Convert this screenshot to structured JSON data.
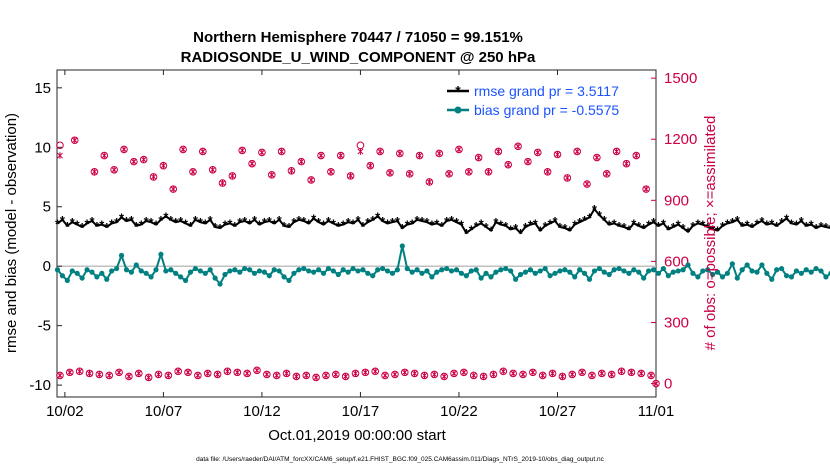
{
  "chart_data": {
    "type": "line",
    "title": "Northern Hemisphere 70447 / 71050 = 99.151%",
    "subtitle": "RADIOSONDE_U_WIND_COMPONENT @ 250 hPa",
    "xlabel": "Oct.01,2019 00:00:00 start",
    "ylabel_left": "rmse and bias (model - observation)",
    "ylabel_right": "# of obs: o=possible; ×=assimilated",
    "footnote": "data file: /Users/raeder/DAI/ATM_forcXX/CAM6_setup/f.e21.FHIST_BGC.f09_025.CAM6assim.011/Diags_NTrS_2019-10/obs_diag_output.nc",
    "x_ticks": [
      "10/02",
      "10/07",
      "10/12",
      "10/17",
      "10/22",
      "10/27",
      "11/01"
    ],
    "x_tick_days": [
      1,
      6,
      11,
      16,
      21,
      26,
      31
    ],
    "xlim_days": [
      0.6,
      31
    ],
    "y_left_ticks": [
      "-10",
      "-5",
      "0",
      "5",
      "10",
      "15"
    ],
    "y_left_tick_values": [
      -10,
      -5,
      0,
      5,
      10,
      15
    ],
    "ylim_left": [
      -11,
      16.5
    ],
    "y_right_ticks": [
      "0",
      "300",
      "600",
      "900",
      "1200",
      "1500"
    ],
    "y_right_tick_values": [
      0,
      300,
      600,
      900,
      1200,
      1500
    ],
    "ylim_right": [
      -66,
      1540
    ],
    "grid": false,
    "legend_position": "top-right",
    "colors": {
      "rmse": "#000000",
      "bias": "#008080",
      "obs": "#cc0044",
      "zero_line": "#c0c0c0",
      "legend_text": "#1a53ff"
    },
    "series": [
      {
        "name": "rmse grand pr = 3.5117",
        "x_start": 0.625,
        "x_step": 0.25,
        "values": [
          3.6,
          3.9,
          3.4,
          3.7,
          3.5,
          3.3,
          3.6,
          3.8,
          3.4,
          3.5,
          3.3,
          3.6,
          3.7,
          4.1,
          3.8,
          3.9,
          3.4,
          3.5,
          3.8,
          3.7,
          3.5,
          3.9,
          4.2,
          3.9,
          3.7,
          3.8,
          3.6,
          3.4,
          3.9,
          3.7,
          3.6,
          3.9,
          3.3,
          3.2,
          3.5,
          3.6,
          3.4,
          3.7,
          3.8,
          3.6,
          3.9,
          3.5,
          3.7,
          3.8,
          3.6,
          3.9,
          3.4,
          3.3,
          3.7,
          3.9,
          3.8,
          3.6,
          4.0,
          3.7,
          3.5,
          3.8,
          3.6,
          3.4,
          3.5,
          3.7,
          3.6,
          3.9,
          3.4,
          3.7,
          3.9,
          4.2,
          3.8,
          3.6,
          3.7,
          3.8,
          3.2,
          3.5,
          3.6,
          3.9,
          3.8,
          3.7,
          3.5,
          3.6,
          3.4,
          3.8,
          3.9,
          3.7,
          3.5,
          2.8,
          3.1,
          3.4,
          3.6,
          3.3,
          3.0,
          3.7,
          3.5,
          3.4,
          3.1,
          3.2,
          2.8,
          3.3,
          3.5,
          3.6,
          3.0,
          3.4,
          3.6,
          3.8,
          3.3,
          3.2,
          3.0,
          3.5,
          3.7,
          3.9,
          4.1,
          4.8,
          4.3,
          3.9,
          3.5,
          3.6,
          3.4,
          3.3,
          3.1,
          3.6,
          3.4,
          3.2,
          3.5,
          3.7,
          3.4,
          3.6,
          3.1,
          3.3,
          3.5,
          3.2,
          2.9,
          3.4,
          3.6,
          3.5,
          3.3,
          3.1,
          3.0,
          3.4,
          3.6,
          3.7,
          3.9,
          3.4,
          3.5,
          3.3,
          3.6,
          3.8,
          3.5,
          3.6,
          3.4,
          3.7,
          4.0,
          3.6,
          3.5,
          3.8,
          3.4,
          3.5,
          3.2,
          3.4,
          3.3,
          3.2,
          3.6,
          3.7,
          3.4,
          3.5,
          4.1,
          4.5,
          3.8,
          3.5,
          3.6,
          3.7,
          3.4,
          3.3,
          3.5,
          3.8,
          3.9,
          3.7,
          3.5,
          3.6,
          3.5,
          3.3,
          3.4,
          3.6,
          3.7,
          3.8,
          3.4,
          3.6,
          3.5,
          3.7,
          3.9,
          3.6,
          3.3,
          3.0,
          3.2,
          3.5,
          3.6,
          3.3,
          3.4,
          3.7,
          3.8,
          3.6,
          3.9,
          3.6,
          3.7,
          3.5,
          3.3,
          3.8,
          3.5,
          3.4,
          3.2,
          3.6,
          3.7,
          3.5,
          3.4,
          3.5,
          3.6,
          3.3,
          3.2,
          3.1,
          3.4,
          3.6,
          3.2,
          3.3,
          3.5,
          3.7,
          4.0,
          3.8,
          3.6,
          3.5,
          3.3,
          3.5,
          3.4,
          3.2,
          3.5,
          3.4,
          3.6,
          3.5,
          3.4,
          3.3,
          3.2,
          3.1
        ]
      },
      {
        "name": "bias grand pr = -0.5575",
        "x_start": 0.625,
        "x_step": 0.25,
        "values": [
          -0.3,
          -0.8,
          -1.2,
          -0.4,
          -0.6,
          -1.0,
          -0.3,
          -0.5,
          -0.9,
          -0.6,
          -1.1,
          -0.4,
          -0.2,
          0.9,
          -0.3,
          -0.5,
          0.1,
          -0.4,
          -0.6,
          -0.9,
          -0.3,
          1.0,
          -0.4,
          -0.3,
          -0.6,
          -0.9,
          -1.2,
          -0.5,
          -0.2,
          -0.4,
          -0.6,
          -0.3,
          -1.0,
          -1.5,
          -0.7,
          -0.4,
          -0.3,
          -0.5,
          -0.2,
          -0.3,
          -0.6,
          -0.4,
          -0.5,
          -0.8,
          -0.3,
          -0.4,
          -0.9,
          -1.2,
          -0.6,
          -0.3,
          -0.2,
          -0.4,
          -0.5,
          -0.3,
          -0.6,
          -0.2,
          -0.4,
          -0.7,
          -0.3,
          -0.5,
          -0.2,
          -0.4,
          -0.3,
          -0.6,
          -0.8,
          -0.3,
          -0.2,
          -0.4,
          -0.6,
          -0.3,
          1.7,
          -0.2,
          -0.5,
          -0.3,
          -0.6,
          -0.4,
          -0.9,
          -0.5,
          -0.3,
          -0.2,
          -0.4,
          -0.3,
          -0.6,
          -0.8,
          -0.4,
          -0.3,
          -1.0,
          -0.6,
          -0.9,
          -0.5,
          -0.3,
          -0.2,
          -0.4,
          -1.1,
          -0.7,
          -0.5,
          -0.3,
          -0.6,
          -0.4,
          -0.2,
          -0.8,
          -0.6,
          -0.4,
          -0.3,
          -0.5,
          -0.9,
          -0.3,
          -0.6,
          -1.1,
          -0.4,
          -0.2,
          -0.5,
          -0.7,
          -0.3,
          -0.2,
          -0.4,
          -0.6,
          -0.3,
          -0.5,
          -1.0,
          -0.4,
          -0.3,
          -0.6,
          -0.2,
          -0.8,
          -0.5,
          -0.4,
          -0.3,
          0.1,
          -0.6,
          -0.9,
          -0.4,
          -0.3,
          -0.7,
          -0.5,
          -0.9,
          -0.6,
          0.2,
          -1.0,
          -0.3,
          0.1,
          -0.4,
          -0.5,
          0.1,
          -0.6,
          -1.1,
          -0.3,
          -0.2,
          -0.8,
          -0.9,
          -0.4,
          -0.6,
          -0.3,
          -0.5,
          -0.2,
          -0.4,
          -0.9,
          -0.6,
          0.3,
          -0.4,
          -0.2,
          -0.5,
          -0.6,
          -0.3,
          -0.4,
          -0.9,
          -0.6,
          -0.5,
          -0.3,
          -0.8,
          -1.0,
          -0.4,
          -0.6,
          -0.5,
          -0.2,
          -0.4,
          -0.6,
          -0.3,
          -1.4,
          -0.5,
          -0.9,
          -0.4,
          -0.6,
          -1.1,
          -0.5,
          -0.3,
          -0.8,
          -0.4,
          -0.5,
          -0.6,
          -0.3,
          -1.0,
          -0.8,
          -1.6,
          -0.5,
          -0.3,
          -0.4,
          -0.6,
          -0.8,
          -0.5,
          -0.9,
          -0.4,
          -0.3,
          -0.6,
          -0.5,
          -0.8,
          -0.4,
          -0.3,
          -0.5,
          -0.9,
          -0.6,
          -0.4,
          -1.1,
          -0.7,
          -0.4,
          -0.3,
          -0.5,
          -0.2,
          -0.4,
          -0.6,
          -0.3,
          0.4,
          -0.5,
          -0.3,
          -0.2,
          -0.4,
          -0.3,
          -0.5,
          -0.2
        ]
      },
      {
        "name": "# of obs possible (o, upper)",
        "x": [
          0.75,
          1.5,
          2.5,
          3.0,
          3.5,
          4.0,
          4.5,
          5.0,
          5.5,
          6.0,
          6.5,
          7.0,
          7.5,
          8.0,
          8.5,
          9.0,
          9.5,
          10.0,
          10.5,
          11.0,
          11.5,
          12.0,
          12.5,
          13.0,
          13.5,
          14.0,
          14.5,
          15.0,
          15.5,
          16.0,
          16.5,
          17.0,
          17.5,
          18.0,
          18.5,
          19.0,
          19.5,
          20.0,
          20.5,
          21.0,
          21.5,
          22.0,
          22.5,
          23.0,
          23.5,
          24.0,
          24.5,
          25.0,
          25.5,
          26.0,
          26.5,
          27.0,
          27.5,
          28.0,
          28.5,
          29.0,
          29.5,
          30.0,
          30.5
        ],
        "values": [
          1170,
          1195,
          1040,
          1120,
          1050,
          1150,
          1090,
          1100,
          1015,
          1070,
          955,
          1150,
          1040,
          1140,
          1050,
          985,
          1020,
          1145,
          1080,
          1135,
          1025,
          1140,
          1045,
          1090,
          1000,
          1120,
          1040,
          1120,
          1020,
          1170,
          1070,
          1140,
          1035,
          1130,
          1030,
          1120,
          990,
          1130,
          1030,
          1150,
          1040,
          1110,
          1040,
          1140,
          1075,
          1165,
          1090,
          1135,
          1040,
          1125,
          1010,
          1140,
          980,
          1110,
          1030,
          1140,
          1080,
          1120,
          955
        ],
        "assimilated": [
          1120,
          1195,
          1040,
          1120,
          1050,
          1150,
          1090,
          1100,
          1015,
          1070,
          955,
          1150,
          1040,
          1140,
          1050,
          985,
          1020,
          1145,
          1080,
          1135,
          1025,
          1140,
          1045,
          1090,
          1000,
          1120,
          1040,
          1120,
          1020,
          1140,
          1070,
          1140,
          1035,
          1130,
          1030,
          1120,
          990,
          1130,
          1030,
          1150,
          1040,
          1110,
          1040,
          1140,
          1075,
          1165,
          1090,
          1135,
          1040,
          1125,
          1010,
          1140,
          980,
          1110,
          1030,
          1140,
          1080,
          1120,
          955
        ]
      },
      {
        "name": "# of obs possible (o, lower)",
        "x": [
          0.75,
          1.25,
          1.75,
          2.25,
          2.75,
          3.25,
          3.75,
          4.25,
          4.75,
          5.25,
          5.75,
          6.25,
          6.75,
          7.25,
          7.75,
          8.25,
          8.75,
          9.25,
          9.75,
          10.25,
          10.75,
          11.25,
          11.75,
          12.25,
          12.75,
          13.25,
          13.75,
          14.25,
          14.75,
          15.25,
          15.75,
          16.25,
          16.75,
          17.25,
          17.75,
          18.25,
          18.75,
          19.25,
          19.75,
          20.25,
          20.75,
          21.25,
          21.75,
          22.25,
          22.75,
          23.25,
          23.75,
          24.25,
          24.75,
          25.25,
          25.75,
          26.25,
          26.75,
          27.25,
          27.75,
          28.25,
          28.75,
          29.25,
          29.75,
          30.25,
          30.75
        ],
        "values": [
          40,
          55,
          60,
          50,
          45,
          40,
          55,
          35,
          50,
          30,
          45,
          40,
          60,
          55,
          40,
          50,
          45,
          60,
          55,
          50,
          65,
          45,
          40,
          50,
          35,
          40,
          30,
          40,
          45,
          35,
          50,
          55,
          60,
          40,
          45,
          55,
          50,
          40,
          45,
          35,
          50,
          55,
          40,
          35,
          45,
          60,
          50,
          45,
          55,
          40,
          50,
          35,
          45,
          55,
          40,
          50,
          45,
          60,
          55,
          50,
          40
        ],
        "assimilated": [
          40,
          55,
          60,
          50,
          45,
          40,
          55,
          35,
          50,
          30,
          45,
          40,
          60,
          55,
          40,
          50,
          45,
          60,
          55,
          50,
          65,
          45,
          40,
          50,
          35,
          40,
          30,
          40,
          45,
          35,
          50,
          55,
          60,
          40,
          45,
          55,
          50,
          40,
          45,
          35,
          50,
          55,
          40,
          35,
          45,
          60,
          50,
          45,
          55,
          40,
          50,
          35,
          45,
          55,
          40,
          50,
          45,
          60,
          55,
          50,
          40
        ]
      },
      {
        "name": "right-edge obs point",
        "x": [
          31.0
        ],
        "values": [
          0
        ],
        "assimilated": [
          0
        ]
      }
    ]
  }
}
